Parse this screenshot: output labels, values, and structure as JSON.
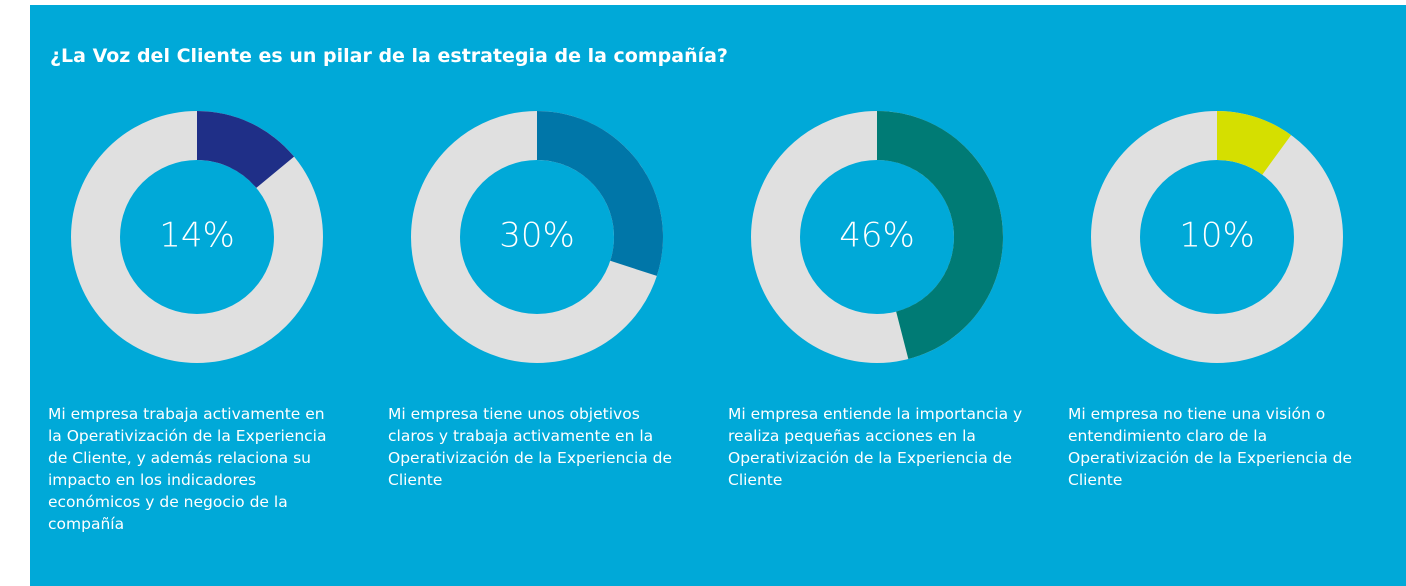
{
  "title": "¿La Voz del Cliente es un pilar de la estrategia de la compañía?",
  "chart_data": [
    {
      "type": "donut",
      "values": [
        14
      ],
      "value_labels": [
        "14%"
      ],
      "color": "#1f2f87",
      "caption": "Mi empresa trabaja activamente en la Operativización de la Experiencia de Cliente, y además relaciona su impacto en los indicadores económicos y de negocio de la compañía"
    },
    {
      "type": "donut",
      "values": [
        30
      ],
      "value_labels": [
        "30%"
      ],
      "color": "#0076a8",
      "caption": "Mi empresa tiene unos objetivos claros y trabaja activamente en la Operativización de la Experiencia de Cliente"
    },
    {
      "type": "donut",
      "values": [
        46
      ],
      "value_labels": [
        "46%"
      ],
      "color": "#007b75",
      "caption": "Mi empresa entiende la importancia y realiza pequeñas acciones en la Operativización de la Experiencia de Cliente"
    },
    {
      "type": "donut",
      "values": [
        10
      ],
      "value_labels": [
        "10%"
      ],
      "color": "#d5df00",
      "caption": "Mi empresa no tiene una visión o entendimiento claro de la Operativización de la Experiencia de Cliente"
    }
  ]
}
